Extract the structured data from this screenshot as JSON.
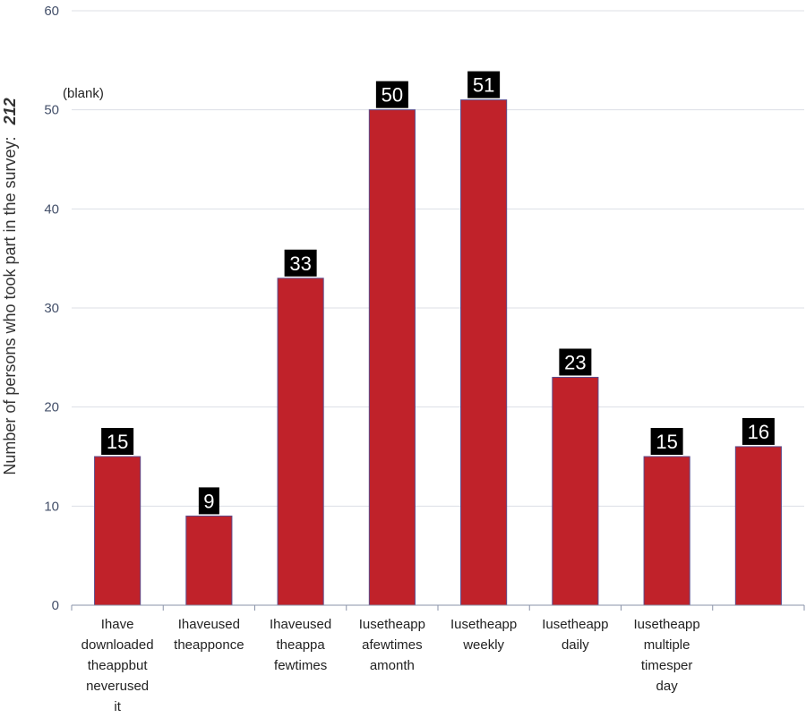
{
  "chart_data": {
    "type": "bar",
    "categories": [
      [
        "Ihave",
        "downloaded",
        "theappbut",
        "neverused",
        "it"
      ],
      [
        "Ihaveused",
        "theapponce"
      ],
      [
        "Ihaveused",
        "theappa",
        "fewtimes"
      ],
      [
        "Iusetheapp",
        "afewtimes",
        "amonth"
      ],
      [
        "Iusetheapp",
        "weekly"
      ],
      [
        "Iusetheapp",
        "daily"
      ],
      [
        "Iusetheapp",
        "multiple",
        "timesper",
        "day"
      ],
      []
    ],
    "values": [
      15,
      9,
      33,
      50,
      51,
      23,
      15,
      16
    ],
    "data_labels": [
      "15",
      "9",
      "33",
      "50",
      "51",
      "23",
      "15",
      "16"
    ],
    "ylabel": "Number of persons who took part in the survey:",
    "ylabel_value": "212",
    "annotation": "(blank)",
    "ylim": [
      0,
      60
    ],
    "yticks": [
      "0",
      "10",
      "20",
      "30",
      "40",
      "50",
      "60"
    ],
    "grid": true,
    "colors": {
      "bar": "#c0222a",
      "bar_edge": "#5b4a8a",
      "label_bg": "#000000",
      "label_text": "#ffffff",
      "grid": "#dcdfe6",
      "axis": "#8a93a8"
    }
  }
}
